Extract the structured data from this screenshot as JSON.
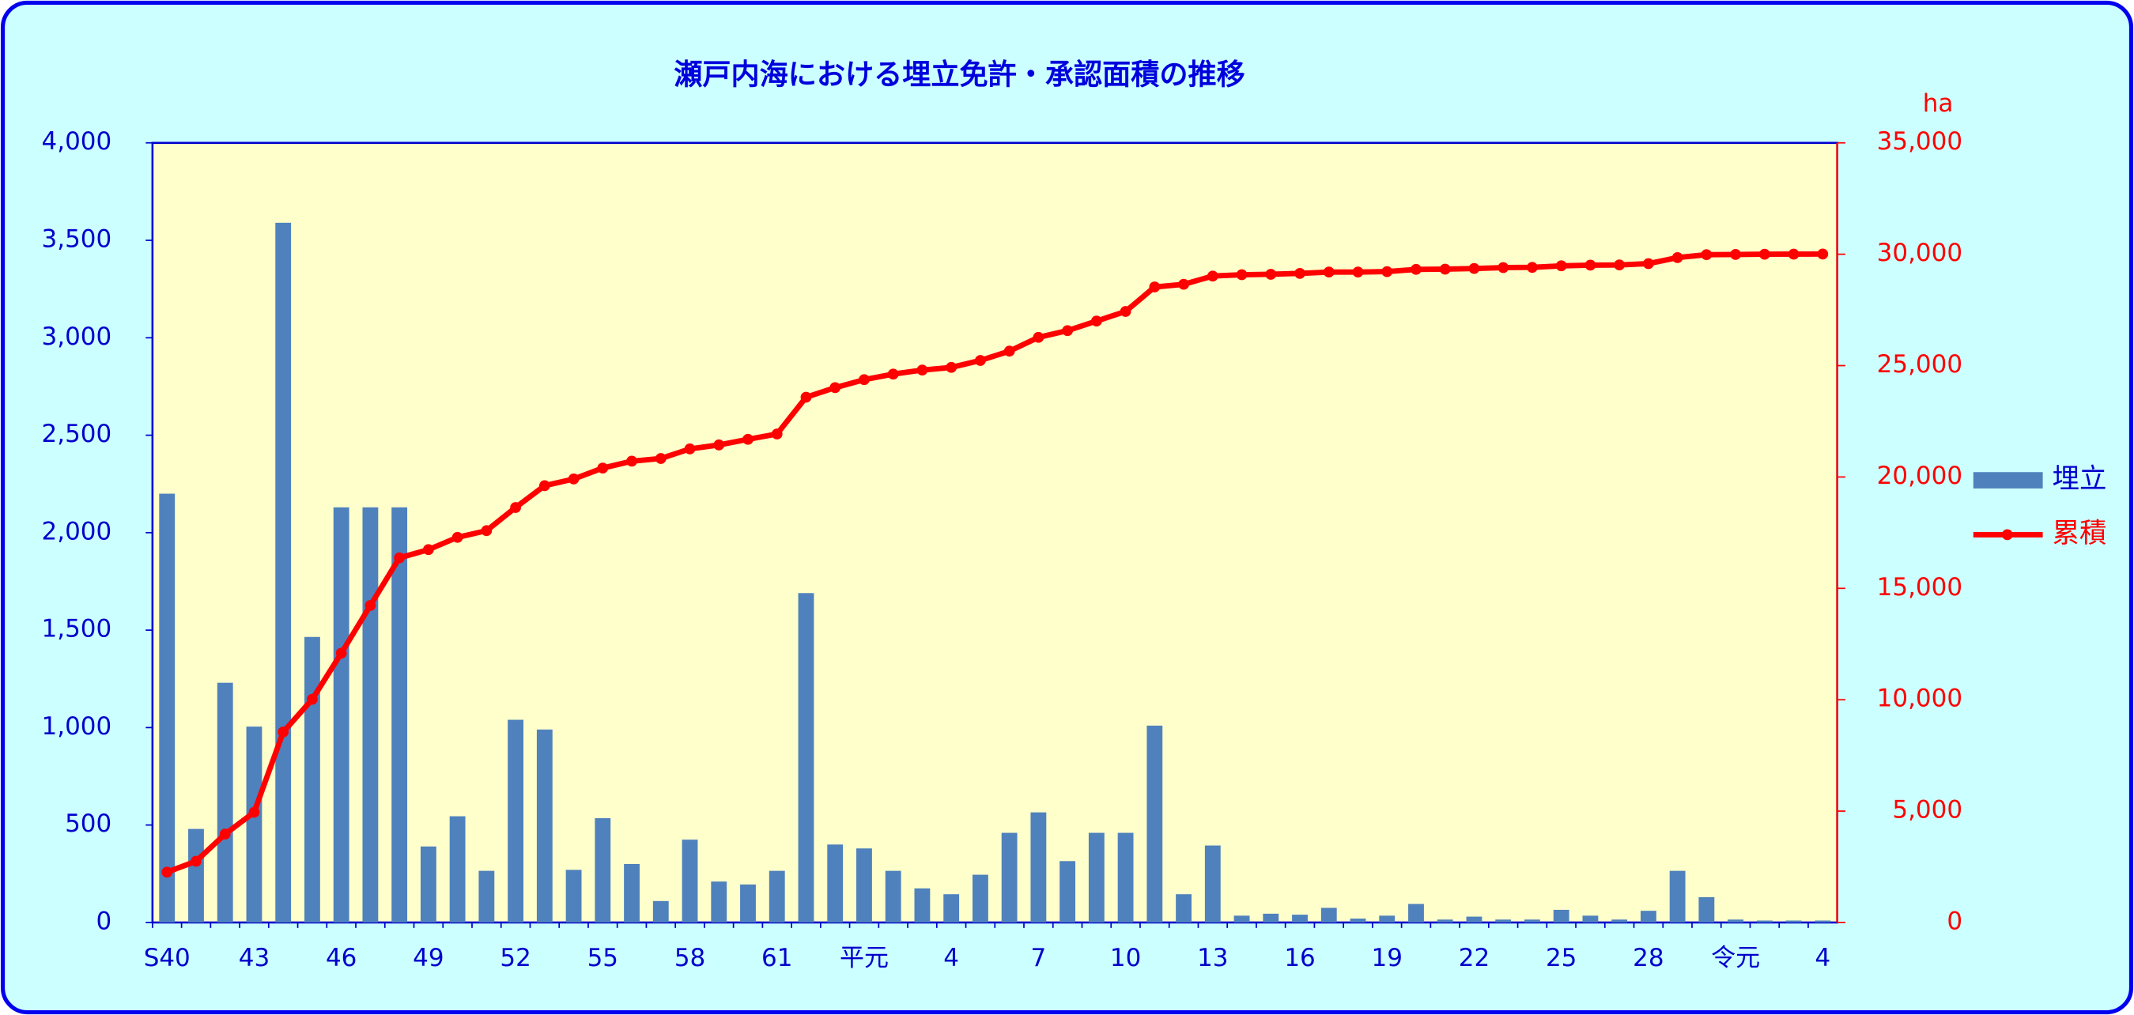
{
  "chart_data": {
    "type": "bar_line",
    "title": "瀬戸内海における埋立免許・承認面積の推移",
    "y2_unit_label": "ha",
    "categories": [
      "S40",
      null,
      null,
      "43",
      null,
      null,
      "46",
      null,
      null,
      "49",
      null,
      null,
      "52",
      null,
      null,
      "55",
      null,
      null,
      "58",
      null,
      null,
      "61",
      null,
      null,
      "平元",
      null,
      null,
      "4",
      null,
      null,
      "7",
      null,
      null,
      "10",
      null,
      null,
      "13",
      null,
      null,
      "16",
      null,
      null,
      "19",
      null,
      null,
      "22",
      null,
      null,
      "25",
      null,
      null,
      "28",
      null,
      null,
      "令元",
      null,
      null,
      "4"
    ],
    "series": [
      {
        "name": "埋立",
        "color": "#4f81bd",
        "kind": "bar",
        "axis": "y",
        "values": [
          2200,
          480,
          1230,
          1005,
          3590,
          1465,
          2130,
          2130,
          2130,
          390,
          545,
          265,
          1040,
          990,
          270,
          535,
          300,
          110,
          425,
          210,
          195,
          265,
          1690,
          400,
          380,
          265,
          175,
          145,
          245,
          460,
          565,
          315,
          460,
          460,
          1010,
          145,
          395,
          35,
          45,
          40,
          75,
          20,
          35,
          95,
          15,
          30,
          15,
          15,
          65,
          35,
          15,
          60,
          265,
          130,
          15,
          10,
          10,
          10
        ]
      },
      {
        "name": "累積",
        "color": "#ff0000",
        "kind": "line",
        "axis": "y2",
        "values": [
          2260,
          2750,
          3970,
          4950,
          8550,
          10020,
          12090,
          14230,
          16370,
          16740,
          17290,
          17590,
          18630,
          19610,
          19910,
          20400,
          20710,
          20830,
          21260,
          21440,
          21690,
          21930,
          23580,
          24010,
          24370,
          24620,
          24800,
          24920,
          25230,
          25650,
          26270,
          26570,
          27000,
          27430,
          28530,
          28650,
          29020,
          29080,
          29100,
          29140,
          29200,
          29200,
          29220,
          29320,
          29330,
          29360,
          29400,
          29410,
          29480,
          29510,
          29520,
          29580,
          29850,
          29980,
          29990,
          30000,
          30005,
          30010
        ]
      }
    ],
    "ylim": [
      0,
      4000
    ],
    "yticks": [
      0,
      500,
      {
        "value": 1000,
        "label": "1,000"
      },
      {
        "value": 1500,
        "label": "1,500"
      },
      {
        "value": 2000,
        "label": "2,000"
      },
      {
        "value": 2500,
        "label": "2,500"
      },
      {
        "value": 3000,
        "label": "3,000"
      },
      {
        "value": 3500,
        "label": "3,500"
      },
      {
        "value": 4000,
        "label": "4,000"
      }
    ],
    "y2lim": [
      0,
      35000
    ],
    "y2ticks": [
      0,
      {
        "value": 5000,
        "label": "5,000"
      },
      {
        "value": 10000,
        "label": "10,000"
      },
      {
        "value": 15000,
        "label": "15,000"
      },
      {
        "value": 20000,
        "label": "20,000"
      },
      {
        "value": 25000,
        "label": "25,000"
      },
      {
        "value": 30000,
        "label": "30,000"
      },
      {
        "value": 35000,
        "label": "35,000"
      }
    ],
    "legend": "right"
  }
}
